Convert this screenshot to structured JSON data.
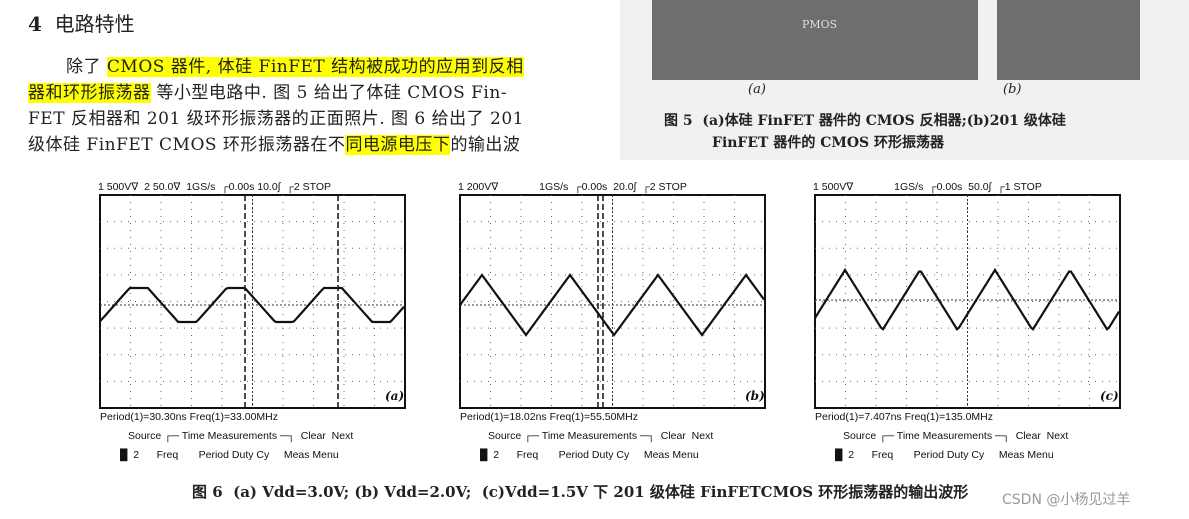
{
  "section": {
    "number": "4",
    "title": "电路特性"
  },
  "paragraph": [
    [
      {
        "text": "除了 "
      },
      {
        "text": "CMOS 器件, 体硅 FinFET 结构被成功的应用到反相",
        "highlight": true
      }
    ],
    [
      {
        "text": "器和环形振荡器",
        "highlight": true
      },
      {
        "text": " 等小型电路中. 图 5 给出了体硅 CMOS Fin-"
      }
    ],
    [
      {
        "text": "FET 反相器和 201 级环形振荡器的正面照片. 图 6 给出了 201"
      }
    ],
    [
      {
        "text": "级体硅 FinFET CMOS 环形振荡器在不"
      },
      {
        "text": "同电源电压下",
        "highlight": true
      },
      {
        "text": "的输出波"
      }
    ]
  ],
  "figure5": {
    "photo_text": "PMOS",
    "labels": [
      "(a)",
      "(b)"
    ],
    "caption": [
      "图 5  (a)体硅 FinFET 器件的 CMOS 反相器;(b)201 级体硅",
      "FinFET 器件的 CMOS 环形振荡器"
    ]
  },
  "figure6": {
    "panels": [
      {
        "header": "1 500V∇  2 50.0∇  1GS/s  ┌0.00s 10.0∫  ┌2 STOP",
        "measure": "Period(1)=30.30ns Freq(1)=33.00MHz",
        "label": "(a)"
      },
      {
        "header": "1 200V∇              1GS/s  ┌0.00s  20.0∫  ┌2 STOP",
        "measure": "Period(1)=18.02ns Freq(1)=55.50MHz",
        "label": "(b)"
      },
      {
        "header": "1 500V∇              1GS/s  ┌0.00s  50.0∫  ┌1 STOP",
        "measure": "Period(1)=7.407ns Freq(1)=135.0MHz",
        "label": "(c)"
      }
    ],
    "menu_row1": "Source ┌─ Time Measurements ─┐  Clear  Next",
    "menu_row2": "█  2      Freq       Period Duty Cy     Meas Menu",
    "caption": "图 6  (a) Vdd=3.0V; (b) Vdd=2.0V;  (c)Vdd=1.5V 下 201 级体硅 FinFETCMOS 环形振荡器的输出波形"
  },
  "watermark": "CSDN @小杨见过羊"
}
